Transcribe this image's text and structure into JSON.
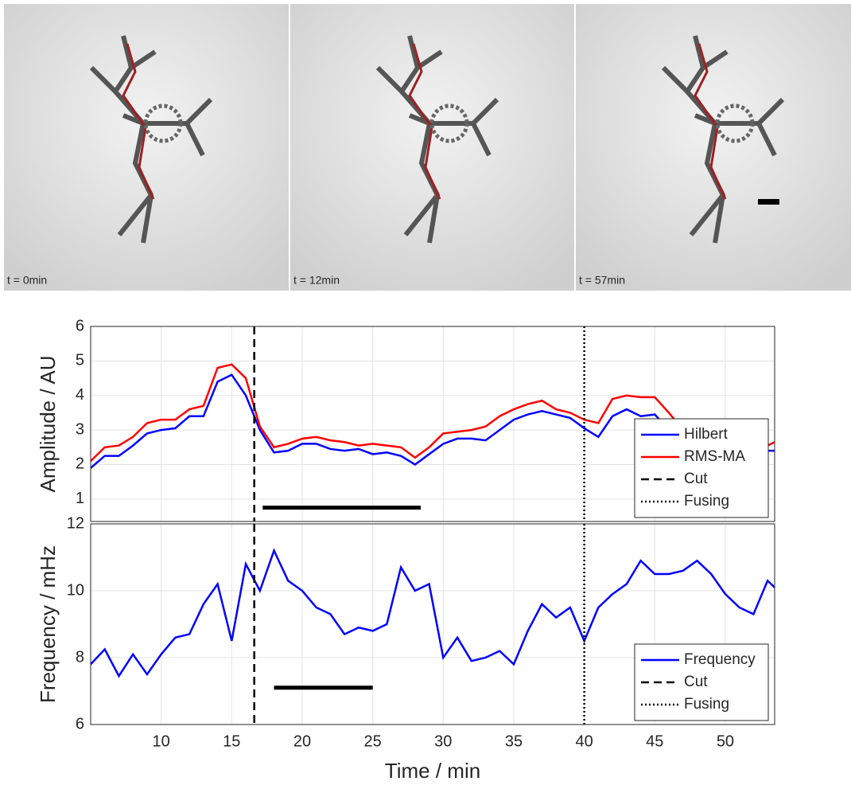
{
  "panels": [
    {
      "label": "t = 0min"
    },
    {
      "label": "t = 12min"
    },
    {
      "label": "t = 57min"
    }
  ],
  "chart_data": [
    {
      "type": "line",
      "ylabel": "Amplitude / AU",
      "x": [
        5,
        6,
        7,
        8,
        9,
        10,
        11,
        12,
        13,
        14,
        15,
        16,
        17,
        18,
        19,
        20,
        21,
        22,
        23,
        24,
        25,
        26,
        27,
        28,
        29,
        30,
        31,
        32,
        33,
        34,
        35,
        36,
        37,
        38,
        39,
        40,
        41,
        42,
        43,
        44,
        45,
        46,
        47,
        48,
        49,
        50,
        51,
        52,
        53,
        53.5
      ],
      "series": [
        {
          "name": "Hilbert",
          "color": "#0000ff",
          "values": [
            1.9,
            2.25,
            2.25,
            2.55,
            2.9,
            3.0,
            3.05,
            3.4,
            3.4,
            4.4,
            4.6,
            4.0,
            3.0,
            2.35,
            2.4,
            2.6,
            2.6,
            2.45,
            2.4,
            2.45,
            2.3,
            2.35,
            2.25,
            2.0,
            2.3,
            2.6,
            2.75,
            2.75,
            2.7,
            3.0,
            3.3,
            3.45,
            3.55,
            3.45,
            3.35,
            3.05,
            2.8,
            3.4,
            3.6,
            3.4,
            3.45,
            3.0,
            2.7,
            2.6,
            2.5,
            2.5,
            2.45,
            2.4,
            2.4,
            2.4
          ]
        },
        {
          "name": "RMS-MA",
          "color": "#ff0000",
          "values": [
            2.1,
            2.5,
            2.55,
            2.8,
            3.2,
            3.3,
            3.3,
            3.6,
            3.7,
            4.8,
            4.9,
            4.5,
            3.1,
            2.5,
            2.6,
            2.75,
            2.8,
            2.7,
            2.65,
            2.55,
            2.6,
            2.55,
            2.5,
            2.2,
            2.5,
            2.9,
            2.95,
            3.0,
            3.1,
            3.4,
            3.6,
            3.75,
            3.85,
            3.6,
            3.5,
            3.3,
            3.2,
            3.9,
            4.0,
            3.95,
            3.95,
            3.5,
            3.0,
            2.8,
            2.7,
            2.6,
            2.55,
            2.5,
            2.55,
            2.65
          ]
        }
      ],
      "markers": [
        {
          "name": "Cut",
          "x": 16.6,
          "style": "dashed"
        },
        {
          "name": "Fusing",
          "x": 40,
          "style": "dotted"
        }
      ],
      "bars": [
        {
          "x": [
            17.2,
            28.4
          ],
          "y": 0.75
        }
      ],
      "xlim": [
        5,
        53.5
      ],
      "xticks": [
        10,
        15,
        20,
        25,
        30,
        35,
        40,
        45,
        50
      ],
      "ylim": [
        0.35,
        6
      ],
      "yticks": [
        1,
        2,
        3,
        4,
        5,
        6
      ],
      "grid": true,
      "legend": "lower right"
    },
    {
      "type": "line",
      "ylabel": "Frequency / mHz",
      "xlabel": "Time / min",
      "x": [
        5,
        6,
        7,
        8,
        9,
        10,
        11,
        12,
        13,
        14,
        15,
        16,
        17,
        18,
        19,
        20,
        21,
        22,
        23,
        24,
        25,
        26,
        27,
        28,
        29,
        30,
        31,
        32,
        33,
        34,
        35,
        36,
        37,
        38,
        39,
        40,
        41,
        42,
        43,
        44,
        45,
        46,
        47,
        48,
        49,
        50,
        51,
        52,
        53,
        53.5
      ],
      "series": [
        {
          "name": "Frequency",
          "color": "#0000ff",
          "values": [
            7.8,
            8.25,
            7.45,
            8.1,
            7.5,
            8.1,
            8.6,
            8.7,
            9.6,
            10.2,
            8.5,
            10.8,
            10.0,
            11.2,
            10.3,
            10.0,
            9.5,
            9.3,
            8.7,
            8.9,
            8.8,
            9.0,
            10.7,
            10.0,
            10.2,
            8.0,
            8.6,
            7.9,
            8.0,
            8.2,
            7.8,
            8.8,
            9.6,
            9.2,
            9.5,
            8.5,
            9.5,
            9.9,
            10.2,
            10.9,
            10.5,
            10.5,
            10.6,
            10.9,
            10.5,
            9.9,
            9.5,
            9.3,
            10.3,
            10.1
          ]
        }
      ],
      "markers": [
        {
          "name": "Cut",
          "x": 16.6,
          "style": "dashed"
        },
        {
          "name": "Fusing",
          "x": 40,
          "style": "dotted"
        }
      ],
      "bars": [
        {
          "x": [
            18,
            25
          ],
          "y": 7.1
        }
      ],
      "xlim": [
        5,
        53.5
      ],
      "xticks": [
        10,
        15,
        20,
        25,
        30,
        35,
        40,
        45,
        50
      ],
      "ylim": [
        6,
        12
      ],
      "yticks": [
        6,
        8,
        10,
        12
      ],
      "grid": true,
      "legend": "lower right"
    }
  ]
}
